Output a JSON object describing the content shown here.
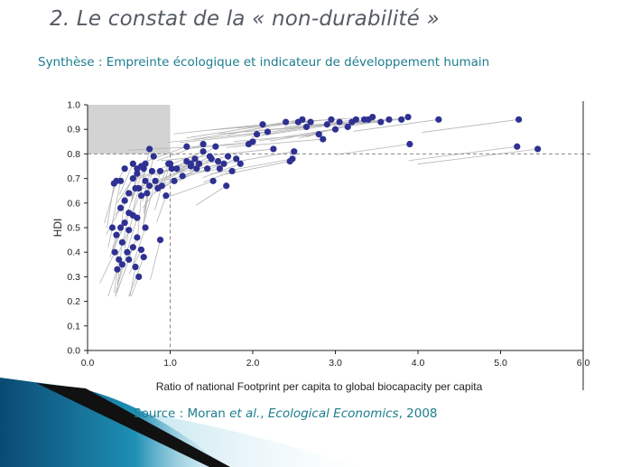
{
  "slide": {
    "title": "2. Le constat de la « non-durabilité »",
    "subtitle": "Synthèse : Empreinte écologique et indicateur de développement humain",
    "source_prefix": "Source : Moran ",
    "source_etal": "et al.",
    "source_sep": ", ",
    "source_journal": "Ecological Economics",
    "source_year": ", 2008"
  },
  "colors": {
    "title": "#555b63",
    "accent": "#1c7d8e",
    "point": "#2e3192",
    "trail": "#b5b5b5",
    "region": "#d3d3d3"
  },
  "chart_data": {
    "type": "scatter",
    "xlabel": "Ratio of national Footprint per capita to global biocapacity per capita",
    "ylabel": "HDI",
    "xlim": [
      0,
      6
    ],
    "ylim": [
      0,
      1
    ],
    "xticks": [
      "0.0",
      "1.0",
      "2.0",
      "3.0",
      "4.0",
      "5.0",
      "6.0"
    ],
    "yticks": [
      "0.0",
      "0.1",
      "0.2",
      "0.3",
      "0.4",
      "0.5",
      "0.6",
      "0.7",
      "0.8",
      "0.9",
      "1.0"
    ],
    "reference_lines": {
      "x": 1.0,
      "y": 0.8
    },
    "sustainable_region": {
      "x": [
        0,
        1
      ],
      "y": [
        0.8,
        1.0
      ]
    },
    "points": [
      [
        0.3,
        0.5
      ],
      [
        0.35,
        0.47
      ],
      [
        0.4,
        0.5
      ],
      [
        0.45,
        0.52
      ],
      [
        0.5,
        0.49
      ],
      [
        0.33,
        0.4
      ],
      [
        0.38,
        0.37
      ],
      [
        0.42,
        0.35
      ],
      [
        0.36,
        0.33
      ],
      [
        0.48,
        0.4
      ],
      [
        0.5,
        0.37
      ],
      [
        0.55,
        0.42
      ],
      [
        0.58,
        0.34
      ],
      [
        0.62,
        0.3
      ],
      [
        0.6,
        0.46
      ],
      [
        0.65,
        0.41
      ],
      [
        0.4,
        0.58
      ],
      [
        0.45,
        0.61
      ],
      [
        0.5,
        0.56
      ],
      [
        0.55,
        0.55
      ],
      [
        0.6,
        0.54
      ],
      [
        0.7,
        0.5
      ],
      [
        0.68,
        0.38
      ],
      [
        0.42,
        0.44
      ],
      [
        0.32,
        0.68
      ],
      [
        0.4,
        0.69
      ],
      [
        0.45,
        0.74
      ],
      [
        0.5,
        0.64
      ],
      [
        0.55,
        0.7
      ],
      [
        0.6,
        0.72
      ],
      [
        0.62,
        0.66
      ],
      [
        0.65,
        0.75
      ],
      [
        0.68,
        0.74
      ],
      [
        0.7,
        0.69
      ],
      [
        0.72,
        0.64
      ],
      [
        0.75,
        0.67
      ],
      [
        0.78,
        0.73
      ],
      [
        0.8,
        0.79
      ],
      [
        0.82,
        0.69
      ],
      [
        0.85,
        0.66
      ],
      [
        0.88,
        0.73
      ],
      [
        0.9,
        0.67
      ],
      [
        0.95,
        0.63
      ],
      [
        0.98,
        0.76
      ],
      [
        0.55,
        0.76
      ],
      [
        0.6,
        0.74
      ],
      [
        0.7,
        0.76
      ],
      [
        0.75,
        0.82
      ],
      [
        0.88,
        0.45
      ],
      [
        0.35,
        0.69
      ],
      [
        0.58,
        0.66
      ],
      [
        0.65,
        0.63
      ],
      [
        1.0,
        0.76
      ],
      [
        1.02,
        0.74
      ],
      [
        1.05,
        0.69
      ],
      [
        1.08,
        0.74
      ],
      [
        1.15,
        0.71
      ],
      [
        1.2,
        0.77
      ],
      [
        1.25,
        0.75
      ],
      [
        1.3,
        0.78
      ],
      [
        1.35,
        0.76
      ],
      [
        1.4,
        0.81
      ],
      [
        1.45,
        0.74
      ],
      [
        1.5,
        0.78
      ],
      [
        1.55,
        0.83
      ],
      [
        1.6,
        0.74
      ],
      [
        1.65,
        0.76
      ],
      [
        1.7,
        0.79
      ],
      [
        1.75,
        0.73
      ],
      [
        1.8,
        0.78
      ],
      [
        1.85,
        0.76
      ],
      [
        1.2,
        0.83
      ],
      [
        1.4,
        0.84
      ],
      [
        1.52,
        0.69
      ],
      [
        1.68,
        0.67
      ],
      [
        1.25,
        0.76
      ],
      [
        1.32,
        0.74
      ],
      [
        1.48,
        0.79
      ],
      [
        1.58,
        0.77
      ],
      [
        1.95,
        0.84
      ],
      [
        2.0,
        0.85
      ],
      [
        2.05,
        0.88
      ],
      [
        2.12,
        0.92
      ],
      [
        2.18,
        0.89
      ],
      [
        2.25,
        0.82
      ],
      [
        2.4,
        0.93
      ],
      [
        2.45,
        0.77
      ],
      [
        2.48,
        0.78
      ],
      [
        2.5,
        0.81
      ],
      [
        2.55,
        0.93
      ],
      [
        2.6,
        0.94
      ],
      [
        2.65,
        0.91
      ],
      [
        2.7,
        0.93
      ],
      [
        2.8,
        0.88
      ],
      [
        2.85,
        0.86
      ],
      [
        2.9,
        0.92
      ],
      [
        2.95,
        0.94
      ],
      [
        3.0,
        0.9
      ],
      [
        3.05,
        0.93
      ],
      [
        3.15,
        0.91
      ],
      [
        3.2,
        0.93
      ],
      [
        3.25,
        0.94
      ],
      [
        3.35,
        0.94
      ],
      [
        3.4,
        0.94
      ],
      [
        3.45,
        0.95
      ],
      [
        3.55,
        0.93
      ],
      [
        3.65,
        0.94
      ],
      [
        3.8,
        0.94
      ],
      [
        3.88,
        0.95
      ],
      [
        3.9,
        0.84
      ],
      [
        4.25,
        0.94
      ],
      [
        5.22,
        0.94
      ],
      [
        5.2,
        0.83
      ],
      [
        5.45,
        0.82
      ]
    ]
  }
}
